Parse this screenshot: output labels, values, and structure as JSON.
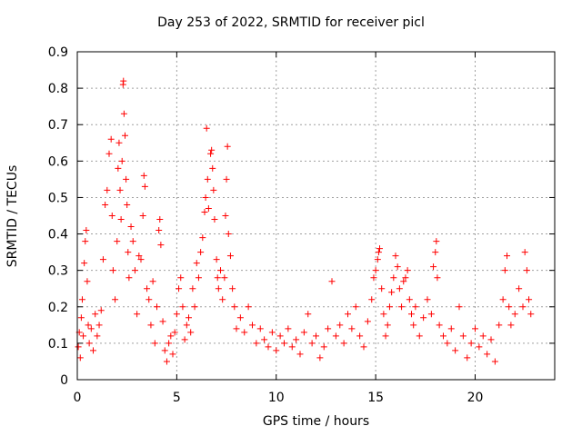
{
  "chart_data": {
    "type": "scatter",
    "title": "Day 253 of 2022, SRMTID for receiver picl",
    "xlabel": "GPS time / hours",
    "ylabel": "SRMTID / TECUs",
    "xlim": [
      0,
      24
    ],
    "ylim": [
      0,
      0.9
    ],
    "xticks": [
      0,
      5,
      10,
      15,
      20
    ],
    "yticks": [
      0,
      0.1,
      0.2,
      0.3,
      0.4,
      0.5,
      0.6,
      0.7,
      0.8,
      0.9
    ],
    "xtick_labels": [
      "0",
      "5",
      "10",
      "15",
      "20"
    ],
    "ytick_labels": [
      "0",
      "0.1",
      "0.2",
      "0.3",
      "0.4",
      "0.5",
      "0.6",
      "0.7",
      "0.8",
      "0.9"
    ],
    "grid": true,
    "marker": "+",
    "color": "#ff0000",
    "series": [
      {
        "name": "SRMTID",
        "points": [
          [
            0.05,
            0.09
          ],
          [
            0.1,
            0.13
          ],
          [
            0.15,
            0.06
          ],
          [
            0.2,
            0.17
          ],
          [
            0.25,
            0.22
          ],
          [
            0.3,
            0.12
          ],
          [
            0.35,
            0.32
          ],
          [
            0.4,
            0.38
          ],
          [
            0.45,
            0.41
          ],
          [
            0.5,
            0.27
          ],
          [
            0.55,
            0.15
          ],
          [
            0.6,
            0.1
          ],
          [
            0.7,
            0.14
          ],
          [
            0.8,
            0.08
          ],
          [
            0.9,
            0.18
          ],
          [
            1.0,
            0.12
          ],
          [
            1.1,
            0.15
          ],
          [
            1.2,
            0.19
          ],
          [
            1.3,
            0.33
          ],
          [
            1.4,
            0.48
          ],
          [
            1.5,
            0.52
          ],
          [
            1.6,
            0.62
          ],
          [
            1.7,
            0.66
          ],
          [
            1.75,
            0.45
          ],
          [
            1.8,
            0.3
          ],
          [
            1.9,
            0.22
          ],
          [
            2.0,
            0.38
          ],
          [
            2.05,
            0.58
          ],
          [
            2.1,
            0.65
          ],
          [
            2.15,
            0.52
          ],
          [
            2.2,
            0.44
          ],
          [
            2.25,
            0.6
          ],
          [
            2.3,
            0.81
          ],
          [
            2.32,
            0.82
          ],
          [
            2.35,
            0.73
          ],
          [
            2.4,
            0.67
          ],
          [
            2.45,
            0.55
          ],
          [
            2.5,
            0.48
          ],
          [
            2.55,
            0.35
          ],
          [
            2.6,
            0.28
          ],
          [
            2.7,
            0.42
          ],
          [
            2.8,
            0.38
          ],
          [
            2.9,
            0.3
          ],
          [
            3.0,
            0.18
          ],
          [
            3.1,
            0.34
          ],
          [
            3.2,
            0.33
          ],
          [
            3.3,
            0.45
          ],
          [
            3.35,
            0.56
          ],
          [
            3.4,
            0.53
          ],
          [
            3.5,
            0.25
          ],
          [
            3.6,
            0.22
          ],
          [
            3.7,
            0.15
          ],
          [
            3.8,
            0.27
          ],
          [
            3.9,
            0.1
          ],
          [
            4.0,
            0.2
          ],
          [
            4.1,
            0.41
          ],
          [
            4.15,
            0.44
          ],
          [
            4.2,
            0.37
          ],
          [
            4.3,
            0.16
          ],
          [
            4.4,
            0.08
          ],
          [
            4.5,
            0.05
          ],
          [
            4.6,
            0.1
          ],
          [
            4.7,
            0.12
          ],
          [
            4.8,
            0.07
          ],
          [
            4.9,
            0.13
          ],
          [
            5.0,
            0.18
          ],
          [
            5.1,
            0.25
          ],
          [
            5.2,
            0.28
          ],
          [
            5.3,
            0.2
          ],
          [
            5.4,
            0.11
          ],
          [
            5.5,
            0.15
          ],
          [
            5.6,
            0.17
          ],
          [
            5.7,
            0.13
          ],
          [
            5.8,
            0.25
          ],
          [
            5.9,
            0.2
          ],
          [
            6.0,
            0.32
          ],
          [
            6.1,
            0.28
          ],
          [
            6.2,
            0.35
          ],
          [
            6.3,
            0.39
          ],
          [
            6.4,
            0.46
          ],
          [
            6.45,
            0.5
          ],
          [
            6.5,
            0.69
          ],
          [
            6.55,
            0.55
          ],
          [
            6.6,
            0.47
          ],
          [
            6.7,
            0.62
          ],
          [
            6.75,
            0.63
          ],
          [
            6.8,
            0.58
          ],
          [
            6.85,
            0.52
          ],
          [
            6.9,
            0.44
          ],
          [
            7.0,
            0.33
          ],
          [
            7.05,
            0.28
          ],
          [
            7.1,
            0.25
          ],
          [
            7.2,
            0.3
          ],
          [
            7.3,
            0.22
          ],
          [
            7.4,
            0.28
          ],
          [
            7.45,
            0.45
          ],
          [
            7.5,
            0.55
          ],
          [
            7.55,
            0.64
          ],
          [
            7.6,
            0.4
          ],
          [
            7.7,
            0.34
          ],
          [
            7.8,
            0.25
          ],
          [
            7.9,
            0.2
          ],
          [
            8.0,
            0.14
          ],
          [
            8.2,
            0.17
          ],
          [
            8.4,
            0.13
          ],
          [
            8.6,
            0.2
          ],
          [
            8.8,
            0.15
          ],
          [
            9.0,
            0.1
          ],
          [
            9.2,
            0.14
          ],
          [
            9.4,
            0.11
          ],
          [
            9.6,
            0.09
          ],
          [
            9.8,
            0.13
          ],
          [
            10.0,
            0.08
          ],
          [
            10.2,
            0.12
          ],
          [
            10.4,
            0.1
          ],
          [
            10.6,
            0.14
          ],
          [
            10.8,
            0.09
          ],
          [
            11.0,
            0.11
          ],
          [
            11.2,
            0.07
          ],
          [
            11.4,
            0.13
          ],
          [
            11.6,
            0.18
          ],
          [
            11.8,
            0.1
          ],
          [
            12.0,
            0.12
          ],
          [
            12.2,
            0.06
          ],
          [
            12.4,
            0.09
          ],
          [
            12.6,
            0.14
          ],
          [
            12.8,
            0.27
          ],
          [
            13.0,
            0.12
          ],
          [
            13.2,
            0.15
          ],
          [
            13.4,
            0.1
          ],
          [
            13.6,
            0.18
          ],
          [
            13.8,
            0.14
          ],
          [
            14.0,
            0.2
          ],
          [
            14.2,
            0.12
          ],
          [
            14.4,
            0.09
          ],
          [
            14.6,
            0.16
          ],
          [
            14.8,
            0.22
          ],
          [
            14.9,
            0.28
          ],
          [
            15.0,
            0.3
          ],
          [
            15.1,
            0.33
          ],
          [
            15.15,
            0.35
          ],
          [
            15.2,
            0.36
          ],
          [
            15.3,
            0.25
          ],
          [
            15.4,
            0.18
          ],
          [
            15.5,
            0.12
          ],
          [
            15.6,
            0.15
          ],
          [
            15.7,
            0.2
          ],
          [
            15.8,
            0.24
          ],
          [
            15.9,
            0.28
          ],
          [
            16.0,
            0.34
          ],
          [
            16.1,
            0.31
          ],
          [
            16.2,
            0.25
          ],
          [
            16.3,
            0.2
          ],
          [
            16.4,
            0.27
          ],
          [
            16.5,
            0.28
          ],
          [
            16.6,
            0.3
          ],
          [
            16.7,
            0.22
          ],
          [
            16.8,
            0.18
          ],
          [
            16.9,
            0.15
          ],
          [
            17.0,
            0.2
          ],
          [
            17.2,
            0.12
          ],
          [
            17.4,
            0.17
          ],
          [
            17.6,
            0.22
          ],
          [
            17.8,
            0.18
          ],
          [
            17.9,
            0.31
          ],
          [
            18.0,
            0.35
          ],
          [
            18.05,
            0.38
          ],
          [
            18.1,
            0.28
          ],
          [
            18.2,
            0.15
          ],
          [
            18.4,
            0.12
          ],
          [
            18.6,
            0.1
          ],
          [
            18.8,
            0.14
          ],
          [
            19.0,
            0.08
          ],
          [
            19.2,
            0.2
          ],
          [
            19.4,
            0.12
          ],
          [
            19.6,
            0.06
          ],
          [
            19.8,
            0.1
          ],
          [
            20.0,
            0.14
          ],
          [
            20.2,
            0.09
          ],
          [
            20.4,
            0.12
          ],
          [
            20.6,
            0.07
          ],
          [
            20.8,
            0.11
          ],
          [
            21.0,
            0.05
          ],
          [
            21.2,
            0.15
          ],
          [
            21.4,
            0.22
          ],
          [
            21.5,
            0.3
          ],
          [
            21.6,
            0.34
          ],
          [
            21.7,
            0.2
          ],
          [
            21.8,
            0.15
          ],
          [
            22.0,
            0.18
          ],
          [
            22.2,
            0.25
          ],
          [
            22.4,
            0.2
          ],
          [
            22.5,
            0.35
          ],
          [
            22.6,
            0.3
          ],
          [
            22.7,
            0.22
          ],
          [
            22.8,
            0.18
          ]
        ]
      }
    ]
  }
}
